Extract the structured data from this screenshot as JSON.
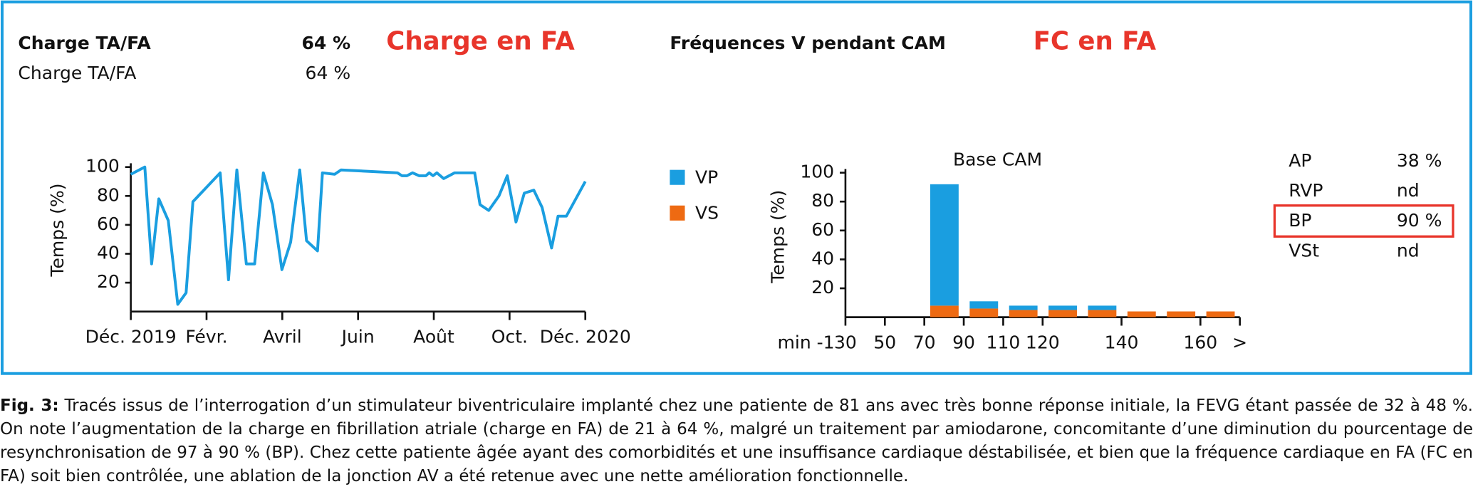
{
  "header": {
    "rows": [
      [
        "Charge TA/FA",
        "64 %"
      ],
      [
        "Charge TA/FA",
        "64 %"
      ]
    ],
    "right_title": "Fréquences V pendant CAM"
  },
  "chart_data": [
    {
      "type": "line",
      "title": "Charge en FA",
      "ylabel": "Temps (%)",
      "color": "#1a9ee0",
      "x": [
        0,
        0.37,
        0.55,
        0.74,
        0.99,
        1.24,
        1.46,
        1.64,
        2.36,
        2.58,
        2.8,
        3.05,
        3.27,
        3.5,
        3.74,
        3.99,
        4.22,
        4.46,
        4.64,
        4.93,
        5.06,
        5.38,
        5.55,
        7.04,
        7.16,
        7.29,
        7.44,
        7.61,
        7.79,
        7.88,
        7.98,
        8.08,
        8.26,
        8.55,
        9.08,
        9.22,
        9.45,
        9.72,
        9.94,
        10.17,
        10.39,
        10.64,
        10.86,
        11.11,
        11.28,
        11.5,
        12
      ],
      "values": [
        95,
        100,
        33,
        78,
        63,
        5,
        13,
        76,
        96,
        22,
        98,
        33,
        33,
        96,
        74,
        29,
        48,
        98,
        49,
        42,
        96,
        95,
        98,
        96,
        94,
        94,
        96,
        94,
        94,
        96,
        94,
        96,
        92,
        96,
        96,
        74,
        70,
        80,
        94,
        62,
        82,
        84,
        72,
        44,
        66,
        66,
        90
      ],
      "xlim": [
        0,
        12
      ],
      "xticks": [
        {
          "value": 0,
          "label": "Déc. 2019"
        },
        {
          "value": 2,
          "label": "Févr."
        },
        {
          "value": 4,
          "label": "Avril"
        },
        {
          "value": 6,
          "label": "Juin"
        },
        {
          "value": 8,
          "label": "Août"
        },
        {
          "value": 10,
          "label": "Oct."
        },
        {
          "value": 12,
          "label": "Déc. 2020"
        }
      ],
      "ylim": [
        0,
        100
      ],
      "yticks": [
        20,
        40,
        60,
        80,
        100
      ]
    },
    {
      "type": "bar",
      "stacked": true,
      "title": "FC en FA",
      "subtitle": "Base CAM",
      "ylabel": "Temps (%)",
      "categories": [
        null,
        null,
        null,
        null,
        null,
        null,
        null,
        null,
        null,
        null
      ],
      "series": [
        {
          "name": "VP",
          "color": "#1a9ee0",
          "values": [
            0,
            0,
            84,
            5,
            3,
            3,
            3,
            0,
            0,
            0
          ]
        },
        {
          "name": "VS",
          "color": "#ee6a12",
          "values": [
            0,
            0,
            8,
            6,
            5,
            5,
            5,
            4,
            4,
            4
          ]
        }
      ],
      "xlim": [
        0,
        10
      ],
      "xticks": [
        {
          "value": -1,
          "label": "min -1"
        },
        {
          "value": 0,
          "label": "30"
        },
        {
          "value": 1,
          "label": "50"
        },
        {
          "value": 2,
          "label": "70"
        },
        {
          "value": 3,
          "label": "90"
        },
        {
          "value": 4,
          "label": "110"
        },
        {
          "value": 5,
          "label": "120"
        },
        {
          "value": 7,
          "label": "140"
        },
        {
          "value": 9,
          "label": "160"
        },
        {
          "value": 10,
          "label": ">"
        }
      ],
      "ylim": [
        0,
        100
      ],
      "yticks": [
        20,
        40,
        60,
        80,
        100
      ]
    }
  ],
  "stats": {
    "rows": [
      [
        "AP",
        "38 %"
      ],
      [
        "RVP",
        "nd"
      ],
      [
        "BP",
        "90 %"
      ],
      [
        "VSt",
        "nd"
      ]
    ],
    "highlighted_row": 2
  },
  "caption": {
    "label": "Fig. 3:",
    "text": "Tracés issus de l’interrogation d’un stimulateur biventriculaire implanté chez une patiente de 81 ans avec très bonne réponse initiale, la FEVG étant passée de 32 à 48 %. On note l’augmentation de la charge en fibrillation atriale (charge en FA) de 21 à 64 %, malgré un traitement par amiodarone, concomitante d’une diminution du pourcentage de resynchronisation de 97 à 90 % (BP). Chez cette patiente âgée ayant des comorbidités et une insuffisance cardiaque déstabilisée, et bien que la fréquence cardiaque en FA (FC en FA) soit bien contrôlée, une ablation de la jonction AV a été retenue avec une nette amélioration fonctionnelle."
  }
}
